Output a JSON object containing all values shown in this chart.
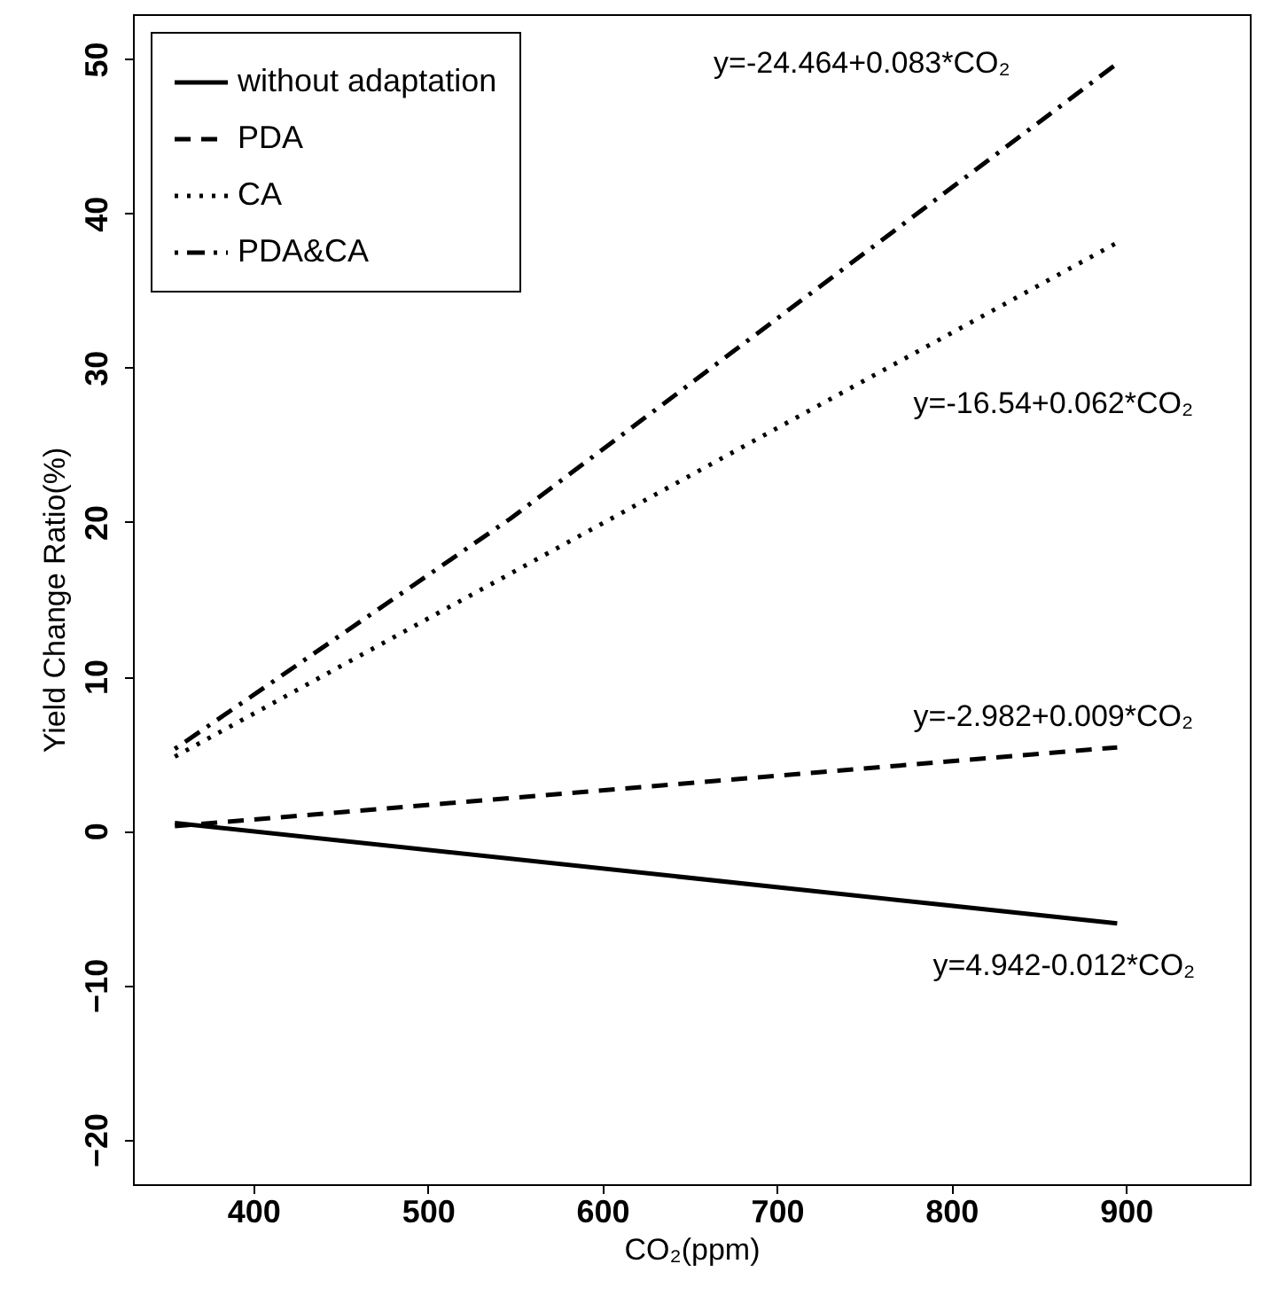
{
  "chart_data": {
    "type": "line",
    "xlabel": "CO₂(ppm)",
    "ylabel": "Yield Change Ratio(%)",
    "xlim": [
      331,
      971
    ],
    "xticks": [
      400,
      500,
      600,
      700,
      800,
      900
    ],
    "ylim": [
      -22.9,
      52.9
    ],
    "yticks": [
      -20,
      -10,
      0,
      10,
      20,
      30,
      40,
      50
    ],
    "grid": false,
    "legend": "top left",
    "series": [
      {
        "name": "without adaptation",
        "color": "#000000",
        "line_style": "solid",
        "x": [
          355,
          895
        ],
        "values": [
          0.5,
          -6.0
        ]
      },
      {
        "name": "PDA",
        "color": "#000000",
        "line_style": "dashed",
        "x": [
          355,
          895
        ],
        "values": [
          0.3,
          5.4
        ]
      },
      {
        "name": "CA",
        "color": "#000000",
        "line_style": "dotted",
        "x": [
          355,
          895
        ],
        "values": [
          4.8,
          38.1
        ]
      },
      {
        "name": "PDA&CA",
        "color": "#000000",
        "line_style": "dashdot",
        "x": [
          355,
          547,
          895
        ],
        "values": [
          5.3,
          20.2,
          49.7
        ]
      }
    ],
    "annotations": [
      "y=4.942-0.012*CO₂",
      "y=-2.982+0.009*CO₂",
      "y=-16.54+0.062*CO₂",
      "y=-24.464+0.083*CO₂"
    ]
  }
}
